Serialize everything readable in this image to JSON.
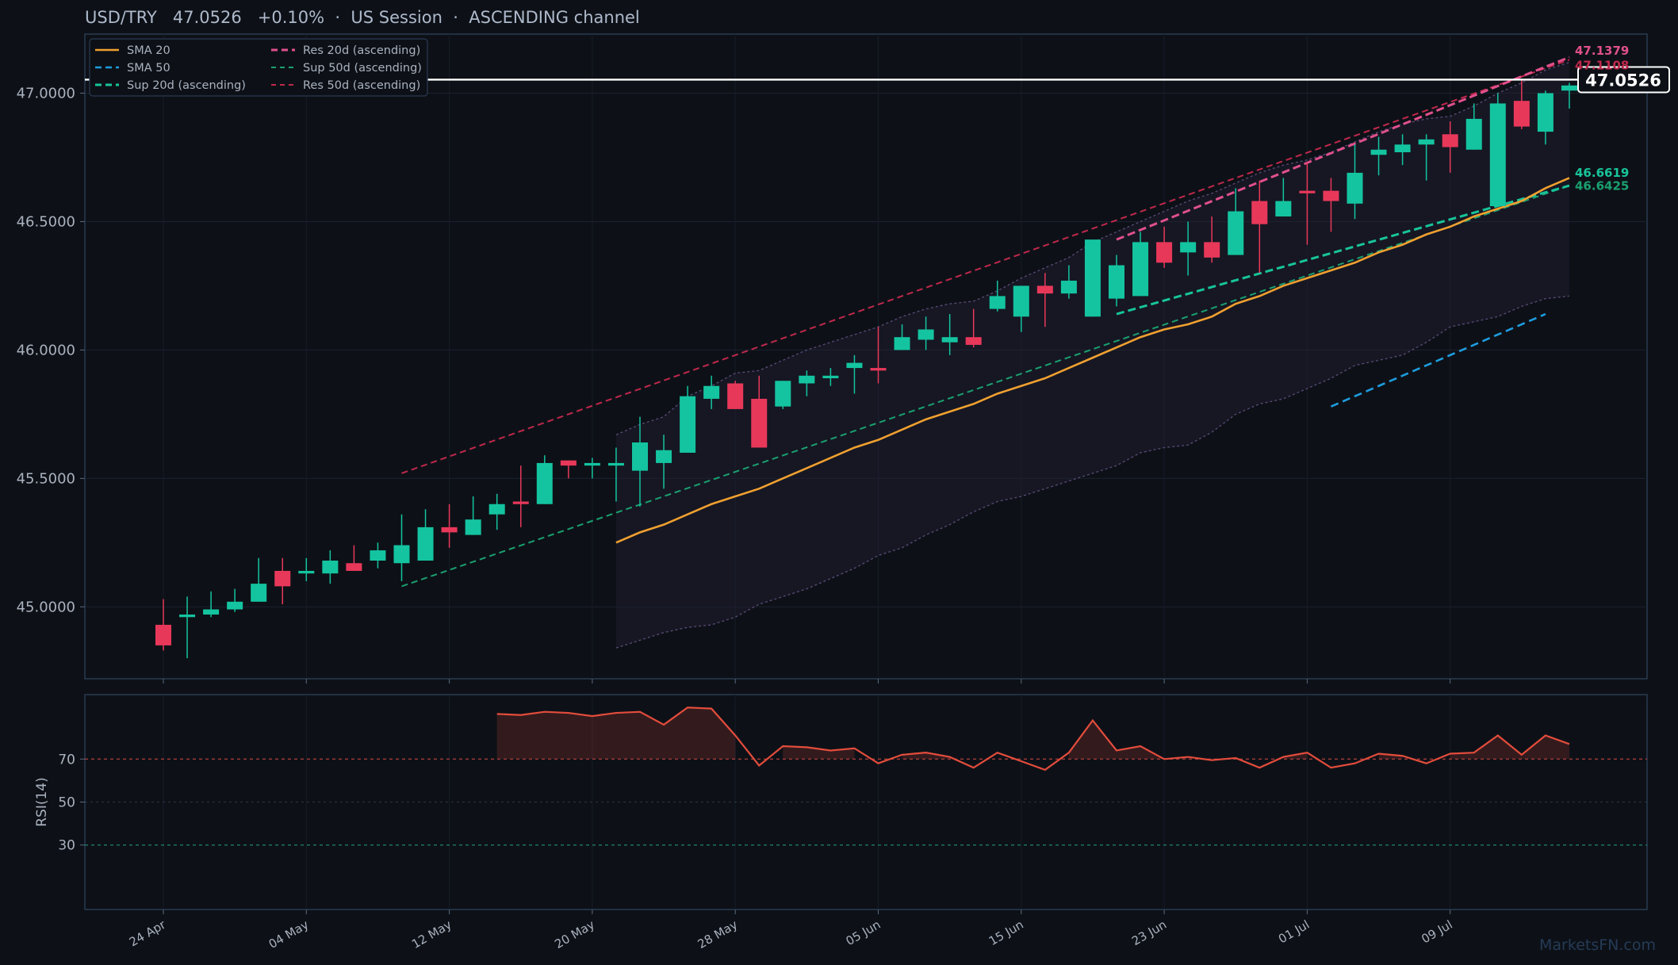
{
  "header": {
    "title": "USD/TRY   47.0526   +0.10%  ·  US Session  ·  ASCENDING channel"
  },
  "watermark": "MarketsFN.com",
  "colors": {
    "background": "#0d1117",
    "up": "#14c4a0",
    "down": "#e8385a",
    "sma20": "#f0a030",
    "sma50": "#1e9de0",
    "sup20": "#18c49a",
    "sup50": "#1aa070",
    "res20": "#e0508c",
    "res50": "#c0284c",
    "band": "#5a4a78",
    "rsi": "#e44c3c",
    "price_line": "#ffffff"
  },
  "chart_data": [
    {
      "type": "candlestick",
      "ylim": [
        44.72,
        47.23
      ],
      "yticks": [
        45.0,
        45.5,
        46.0,
        46.5,
        47.0
      ],
      "ytick_labels": [
        "45.0000",
        "45.5000",
        "46.0000",
        "46.5000",
        "47.0000"
      ],
      "xtick_labels": [
        "24 Apr",
        "04 May",
        "12 May",
        "20 May",
        "28 May",
        "05 Jun",
        "15 Jun",
        "23 Jun",
        "01 Jul",
        "09 Jul"
      ],
      "xtick_index": [
        0,
        6,
        12,
        18,
        24,
        30,
        36,
        42,
        48,
        54
      ],
      "grid": true,
      "legend_position": "top-left",
      "legend": [
        "SMA 20",
        "SMA 50",
        "Sup 20d (ascending)",
        "Res 20d (ascending)",
        "Sup 50d (ascending)",
        "Res 50d (ascending)"
      ],
      "candles": [
        {
          "o": 44.93,
          "h": 45.03,
          "l": 44.83,
          "c": 44.85
        },
        {
          "o": 44.96,
          "h": 45.04,
          "l": 44.8,
          "c": 44.97
        },
        {
          "o": 44.97,
          "h": 45.06,
          "l": 44.96,
          "c": 44.99
        },
        {
          "o": 44.99,
          "h": 45.07,
          "l": 44.98,
          "c": 45.02
        },
        {
          "o": 45.02,
          "h": 45.19,
          "l": 45.02,
          "c": 45.09
        },
        {
          "o": 45.14,
          "h": 45.19,
          "l": 45.01,
          "c": 45.08
        },
        {
          "o": 45.13,
          "h": 45.19,
          "l": 45.1,
          "c": 45.14
        },
        {
          "o": 45.13,
          "h": 45.22,
          "l": 45.09,
          "c": 45.18
        },
        {
          "o": 45.17,
          "h": 45.24,
          "l": 45.14,
          "c": 45.14
        },
        {
          "o": 45.18,
          "h": 45.25,
          "l": 45.15,
          "c": 45.22
        },
        {
          "o": 45.17,
          "h": 45.36,
          "l": 45.1,
          "c": 45.24
        },
        {
          "o": 45.18,
          "h": 45.38,
          "l": 45.18,
          "c": 45.31
        },
        {
          "o": 45.31,
          "h": 45.4,
          "l": 45.23,
          "c": 45.29
        },
        {
          "o": 45.28,
          "h": 45.43,
          "l": 45.28,
          "c": 45.34
        },
        {
          "o": 45.36,
          "h": 45.44,
          "l": 45.3,
          "c": 45.4
        },
        {
          "o": 45.41,
          "h": 45.55,
          "l": 45.31,
          "c": 45.4
        },
        {
          "o": 45.4,
          "h": 45.59,
          "l": 45.4,
          "c": 45.56
        },
        {
          "o": 45.57,
          "h": 45.57,
          "l": 45.5,
          "c": 45.55
        },
        {
          "o": 45.55,
          "h": 45.58,
          "l": 45.5,
          "c": 45.56
        },
        {
          "o": 45.55,
          "h": 45.62,
          "l": 45.41,
          "c": 45.56
        },
        {
          "o": 45.53,
          "h": 45.74,
          "l": 45.39,
          "c": 45.64
        },
        {
          "o": 45.56,
          "h": 45.67,
          "l": 45.46,
          "c": 45.61
        },
        {
          "o": 45.6,
          "h": 45.86,
          "l": 45.6,
          "c": 45.82
        },
        {
          "o": 45.81,
          "h": 45.9,
          "l": 45.77,
          "c": 45.86
        },
        {
          "o": 45.87,
          "h": 45.88,
          "l": 45.77,
          "c": 45.77
        },
        {
          "o": 45.81,
          "h": 45.9,
          "l": 45.62,
          "c": 45.62
        },
        {
          "o": 45.78,
          "h": 45.88,
          "l": 45.77,
          "c": 45.88
        },
        {
          "o": 45.87,
          "h": 45.92,
          "l": 45.82,
          "c": 45.9
        },
        {
          "o": 45.89,
          "h": 45.93,
          "l": 45.86,
          "c": 45.9
        },
        {
          "o": 45.93,
          "h": 45.98,
          "l": 45.83,
          "c": 45.95
        },
        {
          "o": 45.93,
          "h": 46.09,
          "l": 45.87,
          "c": 45.92
        },
        {
          "o": 46.0,
          "h": 46.1,
          "l": 46.0,
          "c": 46.05
        },
        {
          "o": 46.04,
          "h": 46.13,
          "l": 46.0,
          "c": 46.08
        },
        {
          "o": 46.03,
          "h": 46.14,
          "l": 45.98,
          "c": 46.05
        },
        {
          "o": 46.05,
          "h": 46.16,
          "l": 46.01,
          "c": 46.02
        },
        {
          "o": 46.16,
          "h": 46.27,
          "l": 46.15,
          "c": 46.21
        },
        {
          "o": 46.13,
          "h": 46.25,
          "l": 46.07,
          "c": 46.25
        },
        {
          "o": 46.25,
          "h": 46.3,
          "l": 46.09,
          "c": 46.22
        },
        {
          "o": 46.22,
          "h": 46.33,
          "l": 46.2,
          "c": 46.27
        },
        {
          "o": 46.13,
          "h": 46.43,
          "l": 46.13,
          "c": 46.43
        },
        {
          "o": 46.2,
          "h": 46.37,
          "l": 46.17,
          "c": 46.33
        },
        {
          "o": 46.21,
          "h": 46.46,
          "l": 46.21,
          "c": 46.42
        },
        {
          "o": 46.42,
          "h": 46.48,
          "l": 46.32,
          "c": 46.34
        },
        {
          "o": 46.38,
          "h": 46.5,
          "l": 46.29,
          "c": 46.42
        },
        {
          "o": 46.42,
          "h": 46.52,
          "l": 46.34,
          "c": 46.36
        },
        {
          "o": 46.37,
          "h": 46.63,
          "l": 46.37,
          "c": 46.54
        },
        {
          "o": 46.58,
          "h": 46.66,
          "l": 46.3,
          "c": 46.49
        },
        {
          "o": 46.52,
          "h": 46.67,
          "l": 46.52,
          "c": 46.58
        },
        {
          "o": 46.62,
          "h": 46.73,
          "l": 46.41,
          "c": 46.61
        },
        {
          "o": 46.62,
          "h": 46.67,
          "l": 46.46,
          "c": 46.58
        },
        {
          "o": 46.57,
          "h": 46.8,
          "l": 46.51,
          "c": 46.69
        },
        {
          "o": 46.76,
          "h": 46.83,
          "l": 46.68,
          "c": 46.78
        },
        {
          "o": 46.77,
          "h": 46.84,
          "l": 46.72,
          "c": 46.8
        },
        {
          "o": 46.8,
          "h": 46.84,
          "l": 46.66,
          "c": 46.82
        },
        {
          "o": 46.84,
          "h": 46.89,
          "l": 46.69,
          "c": 46.79
        },
        {
          "o": 46.78,
          "h": 46.96,
          "l": 46.78,
          "c": 46.9
        },
        {
          "o": 46.56,
          "h": 47.0,
          "l": 46.56,
          "c": 46.96
        },
        {
          "o": 46.97,
          "h": 47.05,
          "l": 46.86,
          "c": 46.87
        },
        {
          "o": 46.85,
          "h": 47.01,
          "l": 46.8,
          "c": 47.0
        },
        {
          "o": 47.01,
          "h": 47.04,
          "l": 46.94,
          "c": 47.03
        }
      ],
      "sma20": {
        "start": 19,
        "values": [
          45.25,
          45.29,
          45.32,
          45.36,
          45.4,
          45.43,
          45.46,
          45.5,
          45.54,
          45.58,
          45.62,
          45.65,
          45.69,
          45.73,
          45.76,
          45.79,
          45.83,
          45.86,
          45.89,
          45.93,
          45.97,
          46.01,
          46.05,
          46.08,
          46.1,
          46.13,
          46.18,
          46.21,
          46.25,
          46.28,
          46.31,
          46.34,
          46.38,
          46.41,
          46.45,
          46.48,
          46.52,
          46.55,
          46.58,
          46.63,
          46.67
        ]
      },
      "band": {
        "start": 19,
        "upper": [
          45.67,
          45.71,
          45.74,
          45.82,
          45.86,
          45.91,
          45.92,
          45.96,
          46.0,
          46.03,
          46.06,
          46.09,
          46.13,
          46.16,
          46.18,
          46.19,
          46.23,
          46.28,
          46.32,
          46.36,
          46.42,
          46.46,
          46.5,
          46.54,
          46.58,
          46.61,
          46.65,
          46.69,
          46.72,
          46.74,
          46.77,
          46.81,
          46.85,
          46.88,
          46.9,
          46.91,
          46.95,
          47.0,
          47.04,
          47.09,
          47.12
        ],
        "lower": [
          44.84,
          44.87,
          44.9,
          44.92,
          44.93,
          44.96,
          45.01,
          45.04,
          45.07,
          45.11,
          45.15,
          45.2,
          45.23,
          45.28,
          45.32,
          45.37,
          45.41,
          45.43,
          45.46,
          45.49,
          45.52,
          45.55,
          45.6,
          45.62,
          45.63,
          45.68,
          45.75,
          45.79,
          45.81,
          45.85,
          45.89,
          45.94,
          45.96,
          45.98,
          46.03,
          46.09,
          46.11,
          46.13,
          46.17,
          46.2,
          46.21
        ]
      },
      "sma50": {
        "start": 49,
        "values": [
          45.78,
          45.82,
          45.86,
          45.9,
          45.94,
          45.98,
          46.02,
          46.06,
          46.1,
          46.14
        ]
      },
      "trendlines": [
        {
          "name": "Res 50d (ascending)",
          "x0": 10,
          "y0": 45.52,
          "x1": 59,
          "y1": 47.13
        },
        {
          "name": "Sup 50d (ascending)",
          "x0": 10,
          "y0": 45.08,
          "x1": 59,
          "y1": 46.64
        },
        {
          "name": "Res 20d (ascending)",
          "x0": 40,
          "y0": 46.43,
          "x1": 59,
          "y1": 47.14
        },
        {
          "name": "Sup 20d (ascending)",
          "x0": 40,
          "y0": 46.14,
          "x1": 59,
          "y1": 46.64
        }
      ],
      "right_labels": [
        {
          "text": "47.1379",
          "value": 47.1379,
          "color": "#e0508c"
        },
        {
          "text": "47.1108",
          "value": 47.1108,
          "color": "#c0284c"
        },
        {
          "text": "46.6619",
          "value": 46.6619,
          "color": "#18c49a"
        },
        {
          "text": "46.6425",
          "value": 46.6425,
          "color": "#1aa070"
        }
      ],
      "last_price": {
        "value": 47.0526,
        "label": "47.0526"
      }
    },
    {
      "type": "line",
      "ylabel": "RSI(14)",
      "ylim": [
        0,
        100
      ],
      "yticks": [
        30,
        50,
        70
      ],
      "ytick_labels": [
        "30",
        "50",
        "70"
      ],
      "overbought": 70,
      "oversold": 30,
      "rsi": {
        "start": 14,
        "values": [
          91,
          90.5,
          92,
          91.5,
          90,
          91.5,
          92,
          86,
          94,
          93.5,
          81,
          67,
          76,
          75.5,
          74,
          75,
          68,
          72,
          73,
          71,
          66,
          73,
          69,
          65,
          73,
          88,
          74,
          76,
          70,
          71,
          69.5,
          70.5,
          66,
          71,
          73,
          66,
          68,
          72.5,
          71.5,
          68,
          72.5,
          73,
          81,
          72,
          81,
          77
        ]
      }
    }
  ]
}
